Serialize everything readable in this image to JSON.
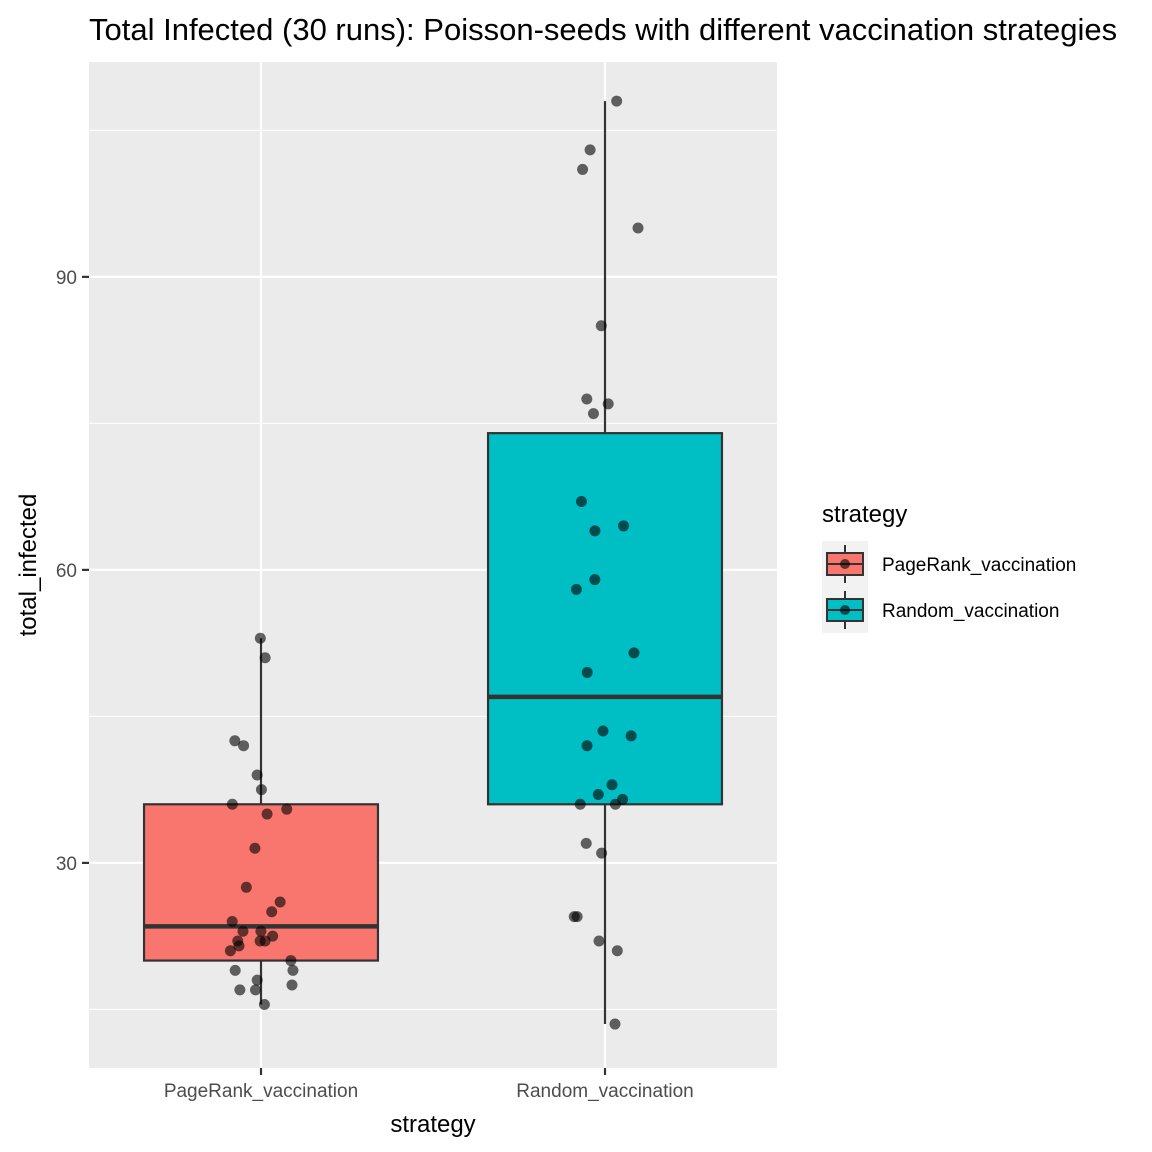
{
  "chart_data": {
    "type": "boxplot",
    "title": "Total Infected (30 runs): Poisson-seeds with different vaccination strategies",
    "xlabel": "strategy",
    "ylabel": "total_infected",
    "categories": [
      "PageRank_vaccination",
      "Random_vaccination"
    ],
    "ylim": [
      9,
      112
    ],
    "yticks": [
      30,
      60,
      90
    ],
    "grid": true,
    "legend": {
      "title": "strategy",
      "position": "right",
      "entries": [
        "PageRank_vaccination",
        "Random_vaccination"
      ]
    },
    "colors": {
      "PageRank_vaccination": "#F8766D",
      "Random_vaccination": "#00BFC4"
    },
    "series": [
      {
        "name": "PageRank_vaccination",
        "box": {
          "q1": 20,
          "median": 23.5,
          "q3": 36,
          "whisker_low": 15.5,
          "whisker_high": 53
        },
        "points": [
          53,
          51,
          42.5,
          42,
          39,
          37.5,
          36,
          35.5,
          35,
          31.5,
          27.5,
          26,
          25,
          24,
          23,
          23,
          22.5,
          22,
          22,
          22,
          21.5,
          21,
          20,
          19,
          19,
          18,
          17.5,
          17,
          17,
          15.5
        ]
      },
      {
        "name": "Random_vaccination",
        "box": {
          "q1": 36,
          "median": 47,
          "q3": 74,
          "whisker_low": 13.5,
          "whisker_high": 108
        },
        "points": [
          108,
          103,
          101,
          95,
          85,
          77.5,
          77,
          76,
          67,
          64.5,
          64,
          59,
          58,
          51.5,
          49.5,
          43,
          43.5,
          42,
          38,
          37,
          36.5,
          36,
          36,
          32,
          31,
          24.5,
          24.5,
          22,
          21,
          13.5
        ]
      }
    ]
  }
}
